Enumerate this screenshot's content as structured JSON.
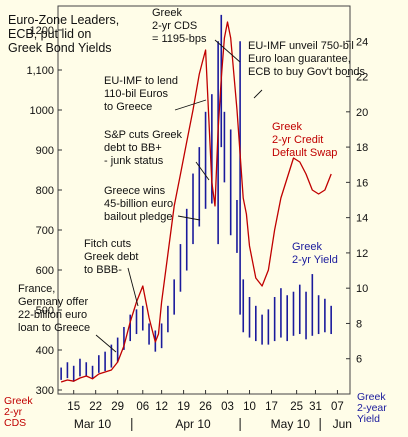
{
  "chart_data": {
    "type": "line",
    "title": "Euro-Zone Leaders, ECB, put lid on Greek Bond Yields",
    "title_lines": [
      "Euro-Zone Leaders,",
      "ECB, put lid on",
      "Greek Bond Yields"
    ],
    "left_axis": {
      "label_lines": [
        "Greek",
        "2-yr",
        "CDS"
      ],
      "ticks": [
        "1200",
        "1,100",
        "1000",
        "900",
        "800",
        "700",
        "600",
        "500",
        "400",
        "300"
      ],
      "tick_values": [
        1200,
        1100,
        1000,
        900,
        800,
        700,
        600,
        500,
        400,
        300
      ],
      "ylim": [
        290,
        1260
      ],
      "color": "#c00000"
    },
    "right_axis": {
      "label_lines": [
        "Greek",
        "2-year",
        "Yield"
      ],
      "ticks": [
        "24",
        "22",
        "20",
        "18",
        "16",
        "14",
        "12",
        "10",
        "8",
        "6"
      ],
      "tick_values": [
        24,
        22,
        20,
        18,
        16,
        14,
        12,
        10,
        8,
        6
      ],
      "ylim": [
        4,
        26
      ],
      "color": "#1a1a9c"
    },
    "x_axis": {
      "tick_labels": [
        "15",
        "22",
        "29",
        "06",
        "12",
        "19",
        "26",
        "03",
        "10",
        "17",
        "25",
        "31",
        "07"
      ],
      "tick_days": [
        0,
        7,
        14,
        22,
        28,
        35,
        42,
        49,
        56,
        63,
        71,
        77,
        84
      ],
      "months": [
        "Mar 10",
        "Apr 10",
        "May 10",
        "Jun"
      ],
      "xlim": [
        -5,
        88
      ]
    },
    "series": [
      {
        "name": "Greek 2-yr Credit Default Swap",
        "axis": "left",
        "color": "#c00000",
        "x": [
          -4,
          -2,
          0,
          2,
          4,
          6,
          8,
          10,
          12,
          14,
          16,
          18,
          20,
          22,
          24,
          26,
          27,
          28,
          30,
          32,
          34,
          36,
          38,
          40,
          41,
          42,
          44,
          45,
          46,
          47,
          48,
          49,
          50,
          52,
          54,
          55,
          56,
          58,
          60,
          62,
          64,
          66,
          68,
          70,
          72,
          74,
          76,
          78,
          80,
          82
        ],
        "values": [
          320,
          325,
          322,
          330,
          335,
          328,
          340,
          345,
          350,
          370,
          410,
          470,
          520,
          560,
          480,
          420,
          440,
          520,
          640,
          760,
          840,
          920,
          1000,
          1090,
          1120,
          1150,
          820,
          760,
          950,
          1080,
          1180,
          1220,
          1180,
          1000,
          780,
          740,
          660,
          580,
          560,
          600,
          700,
          780,
          830,
          880,
          870,
          840,
          800,
          790,
          800,
          840
        ]
      },
      {
        "name": "Greek 2-yr Yield",
        "axis": "right",
        "color": "#1a1a9c",
        "type": "range",
        "x": [
          -4,
          -2,
          0,
          2,
          4,
          6,
          8,
          10,
          12,
          14,
          16,
          18,
          20,
          22,
          24,
          26,
          28,
          30,
          32,
          34,
          36,
          38,
          40,
          42,
          44,
          46,
          47,
          48,
          50,
          52,
          53,
          54,
          56,
          58,
          60,
          62,
          64,
          66,
          68,
          70,
          72,
          74,
          76,
          78,
          80,
          82
        ],
        "low": [
          4.8,
          4.9,
          4.7,
          5.0,
          5.0,
          4.9,
          5.2,
          5.3,
          5.5,
          5.8,
          6.5,
          7.0,
          7.4,
          7.6,
          6.8,
          6.4,
          6.6,
          7.5,
          8.5,
          9.8,
          11.0,
          12.5,
          13.5,
          14.5,
          14.8,
          12.5,
          18.0,
          16.0,
          13.0,
          12.0,
          8.5,
          7.5,
          7.2,
          7.0,
          6.8,
          6.8,
          7.0,
          7.2,
          7.0,
          7.3,
          7.4,
          7.1,
          7.3,
          7.4,
          7.5,
          7.4
        ],
        "high": [
          5.5,
          5.8,
          5.6,
          6.0,
          5.8,
          5.6,
          6.2,
          6.4,
          6.8,
          7.2,
          7.8,
          8.5,
          8.8,
          9.0,
          8.0,
          7.6,
          8.0,
          9.0,
          10.5,
          12.5,
          14.5,
          16.5,
          18.0,
          20.0,
          21.0,
          24.0,
          25.5,
          20.0,
          19.0,
          15.0,
          24.0,
          10.5,
          9.5,
          9.0,
          8.5,
          8.8,
          9.5,
          10.0,
          9.6,
          9.8,
          10.2,
          9.8,
          10.8,
          9.6,
          9.4,
          9.0
        ]
      }
    ],
    "series_labels": {
      "cds_lines": [
        "Greek",
        "2-yr Credit",
        "Default Swap"
      ],
      "yield_lines": [
        "Greek",
        "2-yr Yield"
      ]
    },
    "annotations": [
      {
        "lines": [
          "Greek",
          "2-yr CDS",
          "= 1195-bps"
        ]
      },
      {
        "lines": [
          "EU-IMF unveil 750-bil",
          "Euro loan guarantee,",
          "ECB to buy Gov't bonds"
        ]
      },
      {
        "lines": [
          "EU-IMF to lend",
          "110-bil Euros",
          "to Greece"
        ]
      },
      {
        "lines": [
          "S&P cuts Greek",
          "debt to BB+",
          "- junk status"
        ]
      },
      {
        "lines": [
          "Greece wins",
          "45-billion euro",
          "bailout pledge"
        ]
      },
      {
        "lines": [
          "Fitch cuts",
          "Greek debt",
          "to BBB-"
        ]
      },
      {
        "lines": [
          "France,",
          "Germany offer",
          "22-billion euro",
          "loan to Greece"
        ]
      }
    ]
  }
}
